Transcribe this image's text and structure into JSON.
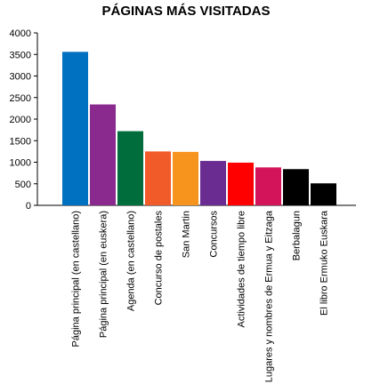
{
  "chart_data": {
    "type": "bar",
    "title": "PÁGINAS MÁS VISITADAS",
    "xlabel": "",
    "ylabel": "",
    "ylim": [
      0,
      4000
    ],
    "yticks": [
      0,
      500,
      1000,
      1500,
      2000,
      2500,
      3000,
      3500,
      4000
    ],
    "grid": false,
    "legend": "none",
    "categories": [
      "Página principal (en castellano)",
      "Página principal (en euskera)",
      "Agenda (en castellano)",
      "Concurso de postales",
      "San Martin",
      "Concursos",
      "Actividades de tiempo libre",
      "Lugares y nombres de Ermua y Eitzaga",
      "Berbalagun",
      "El libro Ermuko Euskara"
    ],
    "values": [
      3560,
      2340,
      1720,
      1250,
      1240,
      1030,
      990,
      880,
      840,
      510
    ],
    "colors": [
      "#0070c0",
      "#8b2a8e",
      "#006e3c",
      "#f15a29",
      "#f7941d",
      "#6a2c91",
      "#ff0000",
      "#d4145a",
      "#000000",
      "#000000"
    ]
  }
}
